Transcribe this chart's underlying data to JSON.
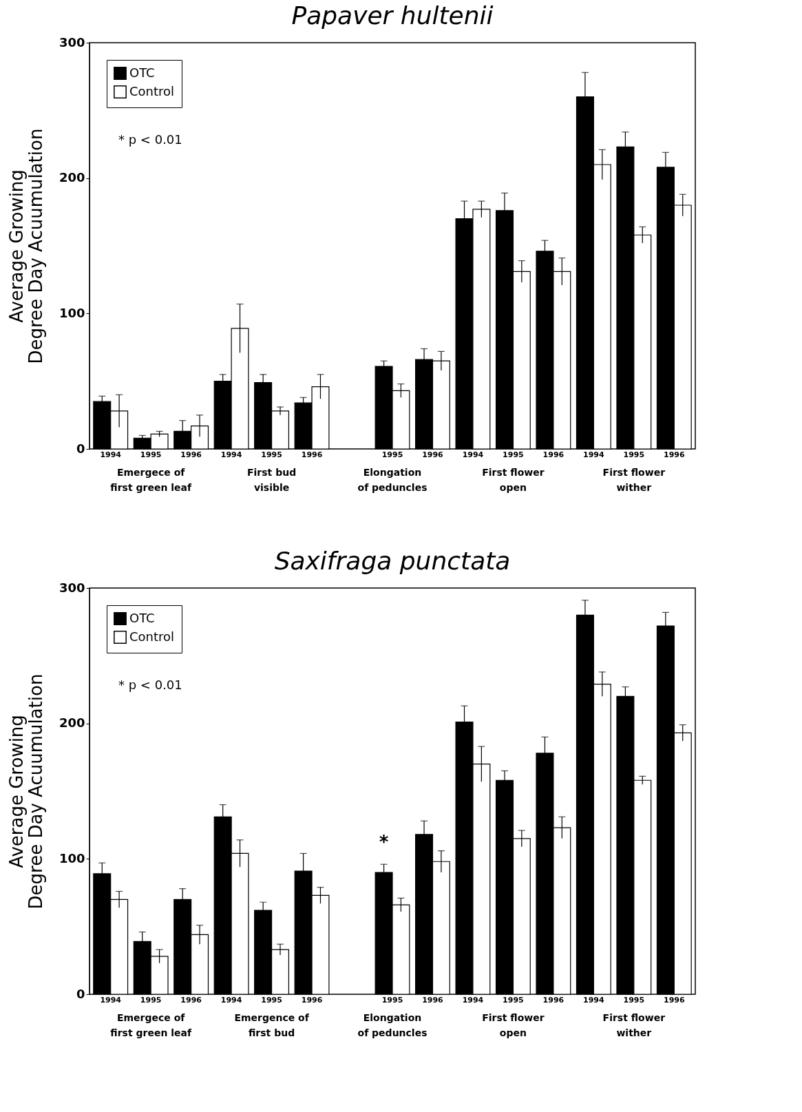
{
  "chart_data": [
    {
      "type": "bar",
      "title": "Papaver   hultenii",
      "ylabel": "Average Growing\nDegree Day Acuumulation",
      "categories": [
        "1994",
        "1995",
        "1996",
        "1994",
        "1995",
        "1996",
        null,
        "1995",
        "1996",
        "1994",
        "1995",
        "1996",
        "1994",
        "1995",
        "1996"
      ],
      "ylim": [
        0,
        300
      ],
      "yticks": [
        0,
        100,
        200,
        300
      ],
      "legend": "top left",
      "series": [
        {
          "name": "OTC",
          "color": "#000000",
          "values": [
            35,
            8,
            13,
            50,
            49,
            34,
            null,
            61,
            66,
            170,
            176,
            146,
            260,
            223,
            208
          ],
          "errors": [
            4,
            2,
            8,
            5,
            6,
            4,
            null,
            4,
            8,
            13,
            13,
            8,
            18,
            11,
            11
          ]
        },
        {
          "name": "Control",
          "color": "#ffffff",
          "values": [
            28,
            11,
            17,
            89,
            28,
            46,
            null,
            43,
            65,
            177,
            131,
            131,
            210,
            158,
            180
          ],
          "errors": [
            12,
            2,
            8,
            18,
            3,
            9,
            null,
            5,
            7,
            6,
            8,
            10,
            11,
            6,
            8
          ]
        }
      ],
      "annotations": [
        "* p < 0.01",
        "Emergece of\nfirst green leaf",
        "First bud\nvisible",
        "Elongation\nof peduncles",
        "First flower\nopen",
        "First flower\nwither"
      ]
    },
    {
      "type": "bar",
      "title": "Saxifraga   punctata",
      "ylabel": "Average Growing\nDegree Day Acuumulation",
      "categories": [
        "1994",
        "1995",
        "1996",
        "1994",
        "1995",
        "1996",
        null,
        "1995",
        "1996",
        "1994",
        "1995",
        "1996",
        "1994",
        "1995",
        "1996"
      ],
      "ylim": [
        0,
        300
      ],
      "yticks": [
        0,
        100,
        200,
        300
      ],
      "legend": "top left",
      "series": [
        {
          "name": "OTC",
          "color": "#000000",
          "values": [
            89,
            39,
            70,
            131,
            62,
            91,
            null,
            90,
            118,
            201,
            158,
            178,
            280,
            220,
            272
          ],
          "errors": [
            8,
            7,
            8,
            9,
            6,
            13,
            null,
            6,
            10,
            12,
            7,
            12,
            11,
            7,
            10
          ],
          "value_labels": [
            null,
            null,
            null,
            null,
            null,
            null,
            null,
            "*",
            null,
            null,
            null,
            null,
            null,
            null,
            null
          ]
        },
        {
          "name": "Control",
          "color": "#ffffff",
          "values": [
            70,
            28,
            44,
            104,
            33,
            73,
            null,
            66,
            98,
            170,
            115,
            123,
            229,
            158,
            193
          ],
          "errors": [
            6,
            5,
            7,
            10,
            4,
            6,
            null,
            5,
            8,
            13,
            6,
            8,
            9,
            3,
            6
          ]
        }
      ],
      "annotations": [
        "* p < 0.01",
        "Emergece of\nfirst green leaf",
        "Emergence of\nfirst bud",
        "Elongation\nof peduncles",
        "First flower\nopen",
        "First flower\nwither"
      ]
    }
  ]
}
